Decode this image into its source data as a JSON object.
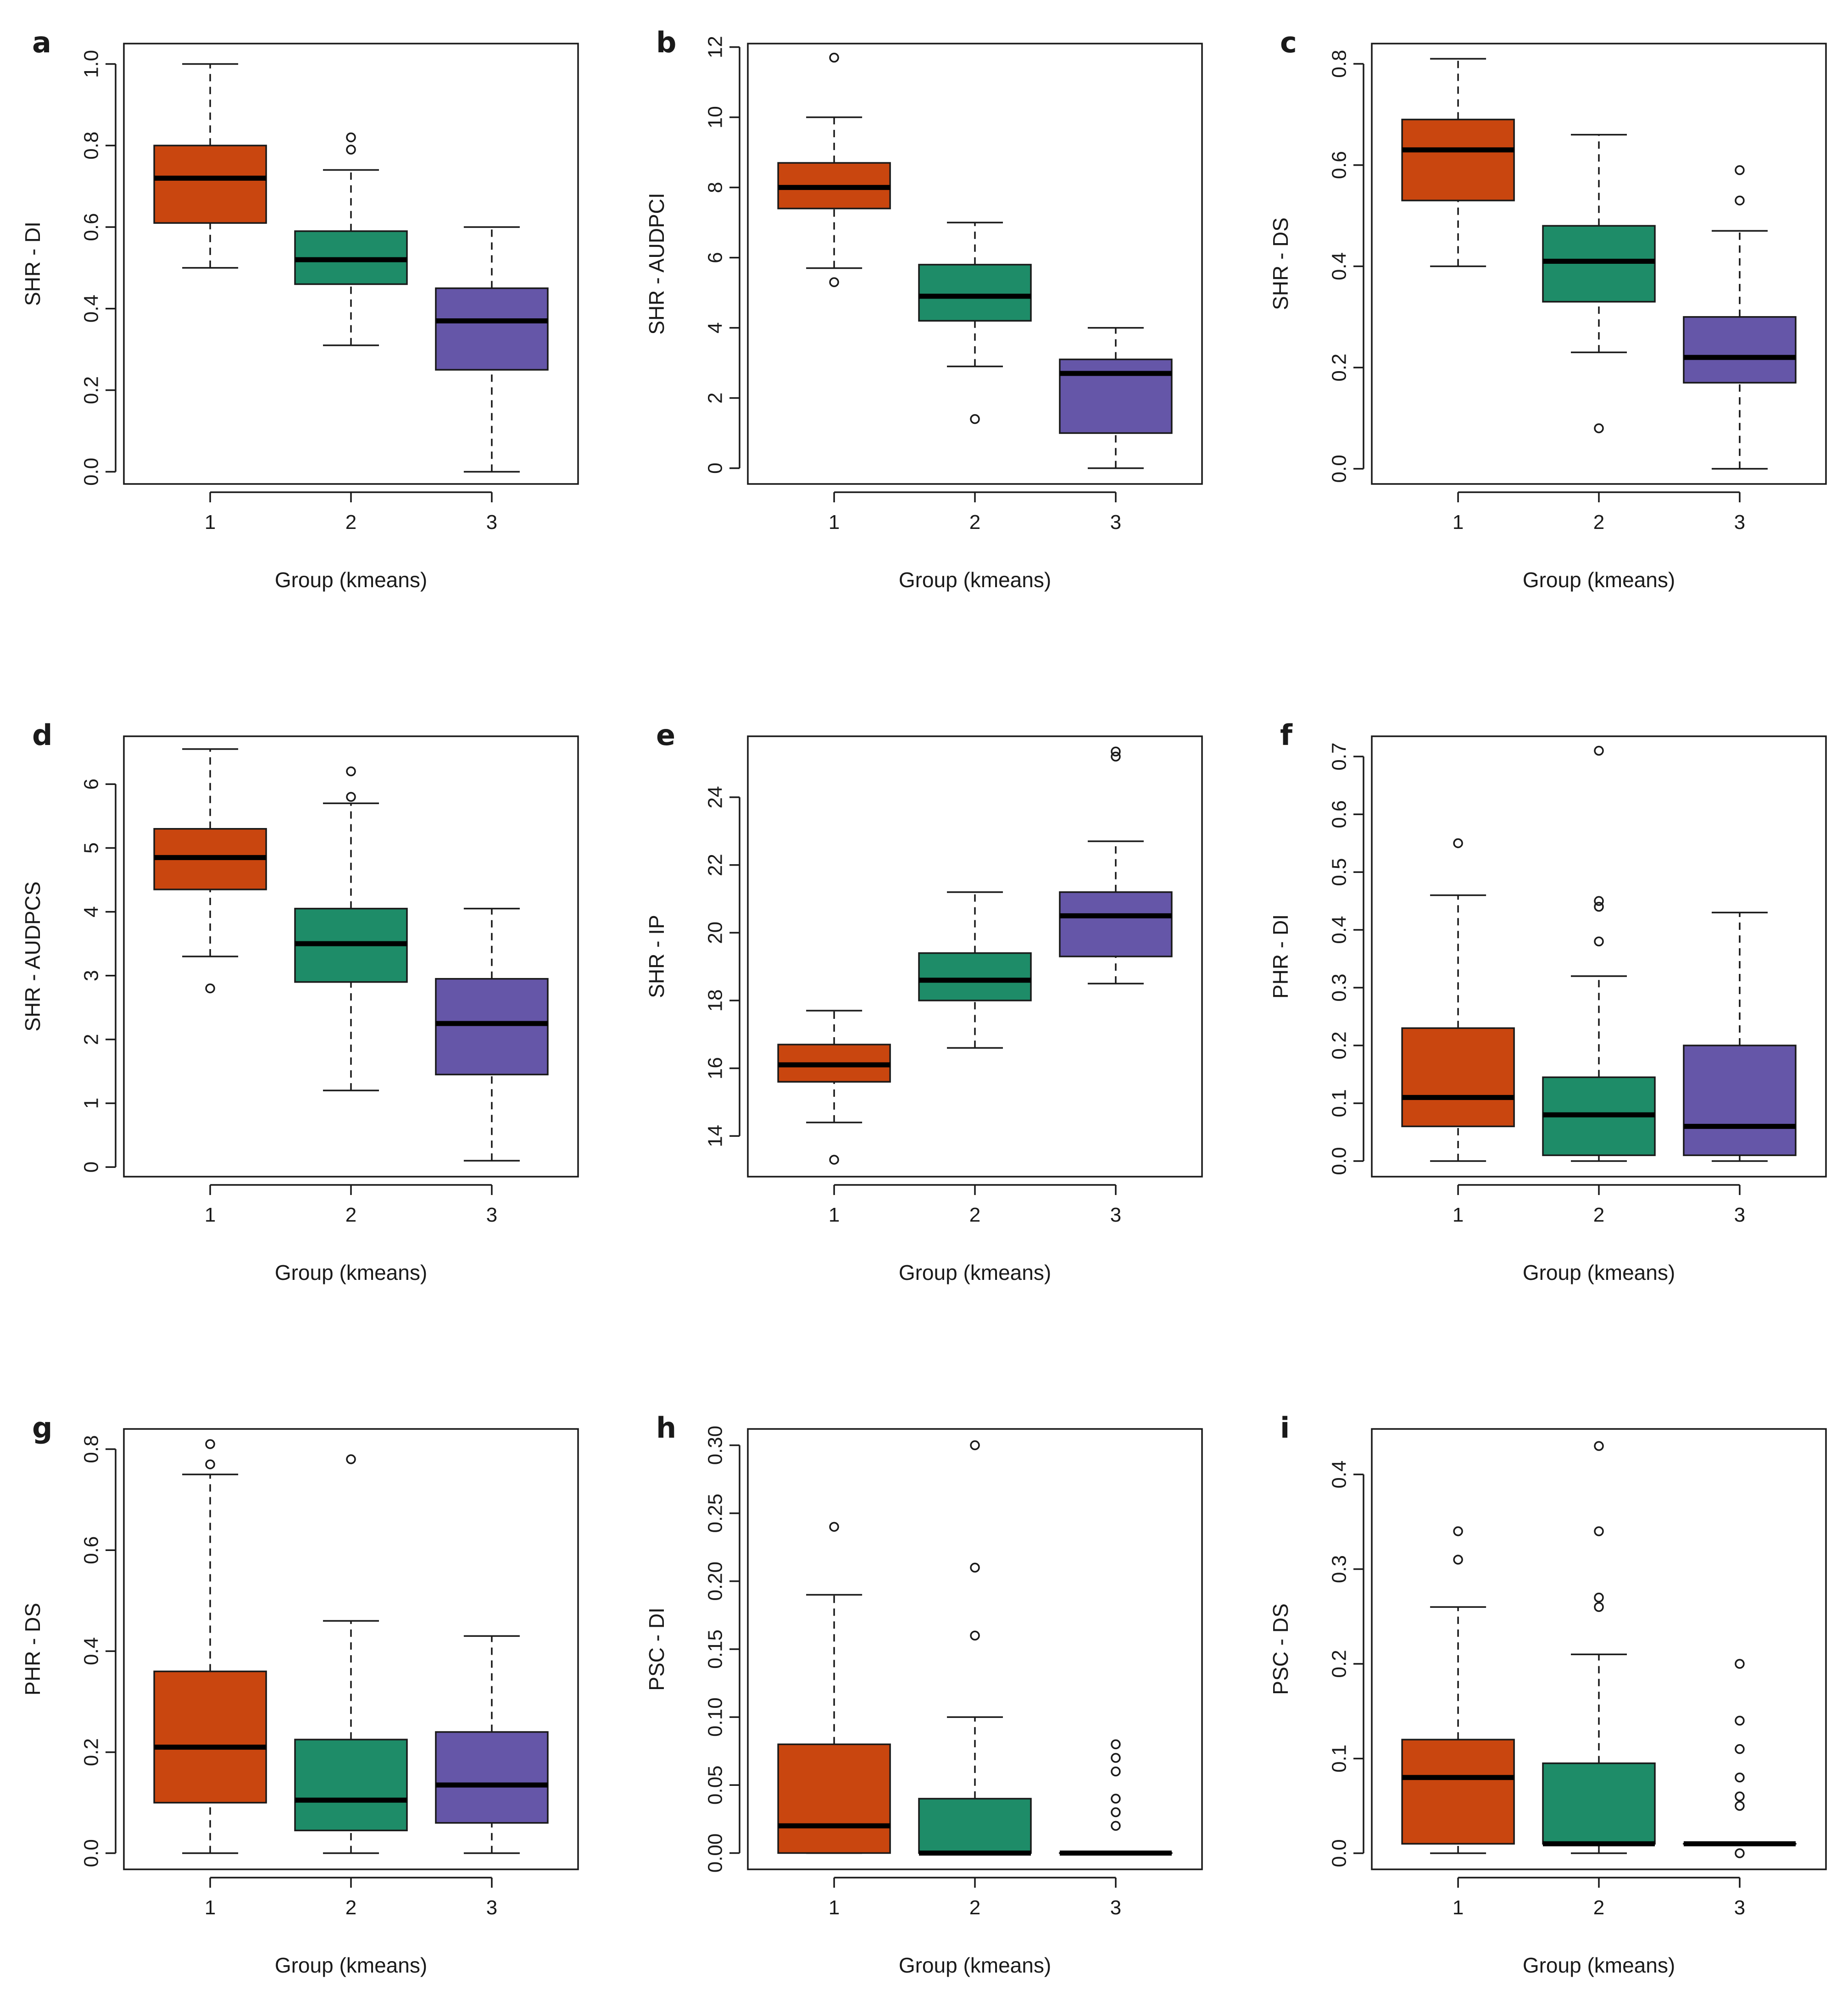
{
  "colors": {
    "group_1": "#C9460F",
    "group_2": "#1E8C68",
    "group_3": "#6556A8"
  },
  "chart_data": [
    {
      "panel": "a",
      "type": "box",
      "ylabel": "SHR - DI",
      "xlabel": "Group (kmeans)",
      "categories": [
        "1",
        "2",
        "3"
      ],
      "ylim": [
        -0.03,
        1.05
      ],
      "yticks": [
        0.0,
        0.2,
        0.4,
        0.6,
        0.8,
        1.0
      ],
      "ytick_labels": [
        "0.0",
        "0.2",
        "0.4",
        "0.6",
        "0.8",
        "1.0"
      ],
      "boxes": [
        {
          "group": "1",
          "whisker_low": 0.5,
          "q1": 0.61,
          "median": 0.72,
          "q3": 0.8,
          "whisker_high": 1.0,
          "outliers": []
        },
        {
          "group": "2",
          "whisker_low": 0.31,
          "q1": 0.46,
          "median": 0.52,
          "q3": 0.59,
          "whisker_high": 0.74,
          "outliers": [
            0.79,
            0.82
          ]
        },
        {
          "group": "3",
          "whisker_low": 0.0,
          "q1": 0.25,
          "median": 0.37,
          "q3": 0.45,
          "whisker_high": 0.6,
          "outliers": []
        }
      ]
    },
    {
      "panel": "b",
      "type": "box",
      "ylabel": "SHR - AUDPCI",
      "xlabel": "Group (kmeans)",
      "categories": [
        "1",
        "2",
        "3"
      ],
      "ylim": [
        -0.45,
        12.1
      ],
      "yticks": [
        0,
        2,
        4,
        6,
        8,
        10,
        12
      ],
      "ytick_labels": [
        "0",
        "2",
        "4",
        "6",
        "8",
        "10",
        "12"
      ],
      "boxes": [
        {
          "group": "1",
          "whisker_low": 5.7,
          "q1": 7.4,
          "median": 8.0,
          "q3": 8.7,
          "whisker_high": 10.0,
          "outliers": [
            5.3,
            11.7
          ]
        },
        {
          "group": "2",
          "whisker_low": 2.9,
          "q1": 4.2,
          "median": 4.9,
          "q3": 5.8,
          "whisker_high": 7.0,
          "outliers": [
            1.4
          ]
        },
        {
          "group": "3",
          "whisker_low": 0.0,
          "q1": 1.0,
          "median": 2.7,
          "q3": 3.1,
          "whisker_high": 4.0,
          "outliers": []
        }
      ]
    },
    {
      "panel": "c",
      "type": "box",
      "ylabel": "SHR - DS",
      "xlabel": "Group (kmeans)",
      "categories": [
        "1",
        "2",
        "3"
      ],
      "ylim": [
        -0.03,
        0.84
      ],
      "yticks": [
        0.0,
        0.2,
        0.4,
        0.6,
        0.8
      ],
      "ytick_labels": [
        "0.0",
        "0.2",
        "0.4",
        "0.6",
        "0.8"
      ],
      "boxes": [
        {
          "group": "1",
          "whisker_low": 0.4,
          "q1": 0.53,
          "median": 0.63,
          "q3": 0.69,
          "whisker_high": 0.81,
          "outliers": []
        },
        {
          "group": "2",
          "whisker_low": 0.23,
          "q1": 0.33,
          "median": 0.41,
          "q3": 0.48,
          "whisker_high": 0.66,
          "outliers": [
            0.08
          ]
        },
        {
          "group": "3",
          "whisker_low": 0.0,
          "q1": 0.17,
          "median": 0.22,
          "q3": 0.3,
          "whisker_high": 0.47,
          "outliers": [
            0.53,
            0.59
          ]
        }
      ]
    },
    {
      "panel": "d",
      "type": "box",
      "ylabel": "SHR - AUDPCS",
      "xlabel": "Group (kmeans)",
      "categories": [
        "1",
        "2",
        "3"
      ],
      "ylim": [
        -0.15,
        6.75
      ],
      "yticks": [
        0,
        1,
        2,
        3,
        4,
        5,
        6
      ],
      "ytick_labels": [
        "0",
        "1",
        "2",
        "3",
        "4",
        "5",
        "6"
      ],
      "boxes": [
        {
          "group": "1",
          "whisker_low": 3.3,
          "q1": 4.35,
          "median": 4.85,
          "q3": 5.3,
          "whisker_high": 6.55,
          "outliers": [
            2.8
          ]
        },
        {
          "group": "2",
          "whisker_low": 1.2,
          "q1": 2.9,
          "median": 3.5,
          "q3": 4.05,
          "whisker_high": 5.7,
          "outliers": [
            5.8,
            6.2
          ]
        },
        {
          "group": "3",
          "whisker_low": 0.1,
          "q1": 1.45,
          "median": 2.25,
          "q3": 2.95,
          "whisker_high": 4.05,
          "outliers": []
        }
      ]
    },
    {
      "panel": "e",
      "type": "box",
      "ylabel": "SHR - IP",
      "xlabel": "Group (kmeans)",
      "categories": [
        "1",
        "2",
        "3"
      ],
      "ylim": [
        12.8,
        25.8
      ],
      "yticks": [
        14,
        16,
        18,
        20,
        22,
        24
      ],
      "ytick_labels": [
        "14",
        "16",
        "18",
        "20",
        "22",
        "24"
      ],
      "boxes": [
        {
          "group": "1",
          "whisker_low": 14.4,
          "q1": 15.6,
          "median": 16.1,
          "q3": 16.7,
          "whisker_high": 17.7,
          "outliers": [
            13.3
          ]
        },
        {
          "group": "2",
          "whisker_low": 16.6,
          "q1": 18.0,
          "median": 18.6,
          "q3": 19.4,
          "whisker_high": 21.2,
          "outliers": []
        },
        {
          "group": "3",
          "whisker_low": 18.5,
          "q1": 19.3,
          "median": 20.5,
          "q3": 21.2,
          "whisker_high": 22.7,
          "outliers": [
            25.2,
            25.35
          ]
        }
      ]
    },
    {
      "panel": "f",
      "type": "box",
      "ylabel": "PHR - DI",
      "xlabel": "Group (kmeans)",
      "categories": [
        "1",
        "2",
        "3"
      ],
      "ylim": [
        -0.027,
        0.735
      ],
      "yticks": [
        0.0,
        0.1,
        0.2,
        0.3,
        0.4,
        0.5,
        0.6,
        0.7
      ],
      "ytick_labels": [
        "0.0",
        "0.1",
        "0.2",
        "0.3",
        "0.4",
        "0.5",
        "0.6",
        "0.7"
      ],
      "boxes": [
        {
          "group": "1",
          "whisker_low": 0.0,
          "q1": 0.06,
          "median": 0.11,
          "q3": 0.23,
          "whisker_high": 0.46,
          "outliers": [
            0.55
          ]
        },
        {
          "group": "2",
          "whisker_low": 0.0,
          "q1": 0.01,
          "median": 0.08,
          "q3": 0.145,
          "whisker_high": 0.32,
          "outliers": [
            0.38,
            0.44,
            0.45,
            0.71
          ]
        },
        {
          "group": "3",
          "whisker_low": 0.0,
          "q1": 0.01,
          "median": 0.06,
          "q3": 0.2,
          "whisker_high": 0.43,
          "outliers": []
        }
      ]
    },
    {
      "panel": "g",
      "type": "box",
      "ylabel": "PHR - DS",
      "xlabel": "Group (kmeans)",
      "categories": [
        "1",
        "2",
        "3"
      ],
      "ylim": [
        -0.032,
        0.84
      ],
      "yticks": [
        0.0,
        0.2,
        0.4,
        0.6,
        0.8
      ],
      "ytick_labels": [
        "0.0",
        "0.2",
        "0.4",
        "0.6",
        "0.8"
      ],
      "boxes": [
        {
          "group": "1",
          "whisker_low": 0.0,
          "q1": 0.1,
          "median": 0.21,
          "q3": 0.36,
          "whisker_high": 0.75,
          "outliers": [
            0.77,
            0.81
          ]
        },
        {
          "group": "2",
          "whisker_low": 0.0,
          "q1": 0.045,
          "median": 0.105,
          "q3": 0.225,
          "whisker_high": 0.46,
          "outliers": [
            0.78
          ]
        },
        {
          "group": "3",
          "whisker_low": 0.0,
          "q1": 0.06,
          "median": 0.135,
          "q3": 0.24,
          "whisker_high": 0.43,
          "outliers": []
        }
      ]
    },
    {
      "panel": "h",
      "type": "box",
      "ylabel": "PSC - DI",
      "xlabel": "Group (kmeans)",
      "categories": [
        "1",
        "2",
        "3"
      ],
      "ylim": [
        -0.012,
        0.312
      ],
      "yticks": [
        0.0,
        0.05,
        0.1,
        0.15,
        0.2,
        0.25,
        0.3
      ],
      "ytick_labels": [
        "0.00",
        "0.05",
        "0.10",
        "0.15",
        "0.20",
        "0.25",
        "0.30"
      ],
      "boxes": [
        {
          "group": "1",
          "whisker_low": 0.0,
          "q1": 0.0,
          "median": 0.02,
          "q3": 0.08,
          "whisker_high": 0.19,
          "outliers": [
            0.24
          ]
        },
        {
          "group": "2",
          "whisker_low": 0.0,
          "q1": 0.0,
          "median": 0.0,
          "q3": 0.04,
          "whisker_high": 0.1,
          "outliers": [
            0.16,
            0.21,
            0.3
          ]
        },
        {
          "group": "3",
          "whisker_low": 0.0,
          "q1": 0.0,
          "median": 0.0,
          "q3": 0.0,
          "whisker_high": 0.0,
          "outliers": [
            0.02,
            0.03,
            0.04,
            0.06,
            0.07,
            0.08
          ]
        }
      ]
    },
    {
      "panel": "i",
      "type": "box",
      "ylabel": "PSC - DS",
      "xlabel": "Group (kmeans)",
      "categories": [
        "1",
        "2",
        "3"
      ],
      "ylim": [
        -0.017,
        0.448
      ],
      "yticks": [
        0.0,
        0.1,
        0.2,
        0.3,
        0.4
      ],
      "ytick_labels": [
        "0.0",
        "0.1",
        "0.2",
        "0.3",
        "0.4"
      ],
      "boxes": [
        {
          "group": "1",
          "whisker_low": 0.0,
          "q1": 0.01,
          "median": 0.08,
          "q3": 0.12,
          "whisker_high": 0.26,
          "outliers": [
            0.31,
            0.34
          ]
        },
        {
          "group": "2",
          "whisker_low": 0.0,
          "q1": 0.01,
          "median": 0.01,
          "q3": 0.095,
          "whisker_high": 0.21,
          "outliers": [
            0.26,
            0.27,
            0.34,
            0.43
          ]
        },
        {
          "group": "3",
          "whisker_low": 0.01,
          "q1": 0.01,
          "median": 0.01,
          "q3": 0.01,
          "whisker_high": 0.01,
          "outliers": [
            0.0,
            0.05,
            0.06,
            0.08,
            0.11,
            0.14,
            0.2
          ]
        }
      ]
    }
  ]
}
